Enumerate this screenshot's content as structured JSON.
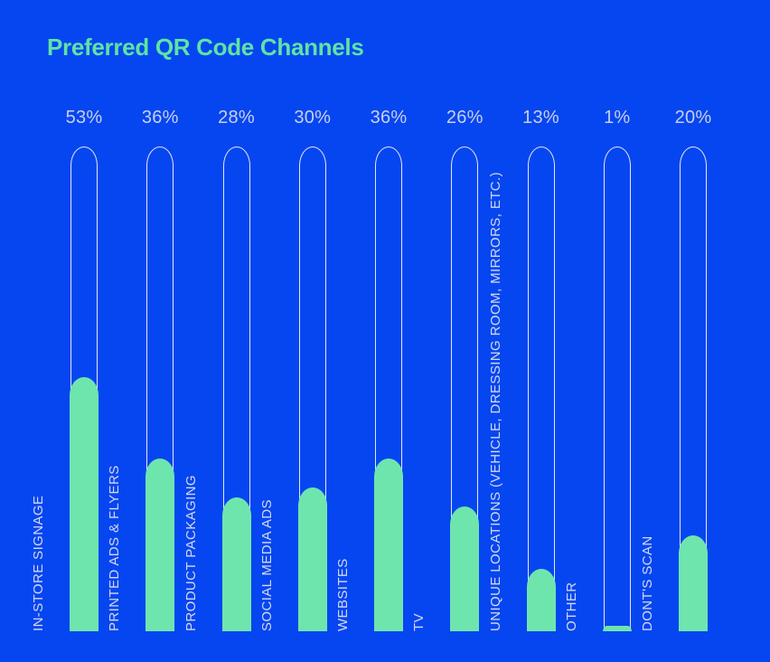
{
  "title": "Preferred QR Code Channels",
  "colors": {
    "background": "#0646F0",
    "bar_fill": "#6FE5AE",
    "title_text": "#5FE3A4",
    "value_text": "#C9CFEC",
    "category_text": "#D4D9F2",
    "tube_outline": "#E3E7F8"
  },
  "chart_data": {
    "type": "bar",
    "title": "Preferred QR Code Channels",
    "orientation": "vertical",
    "categories": [
      "IN-STORE SIGNAGE",
      "PRINTED ADS & FLYERS",
      "PRODUCT PACKAGING",
      "SOCIAL MEDIA ADS",
      "WEBSITES",
      "TV",
      "UNIQUE LOCATIONS (VEHICLE, DRESSING ROOM, MIRRORS, ETC.)",
      "OTHER",
      "DONT'S SCAN"
    ],
    "values": [
      53,
      36,
      28,
      30,
      36,
      26,
      13,
      1,
      20
    ],
    "value_labels": [
      "53%",
      "36%",
      "28%",
      "30%",
      "36%",
      "26%",
      "13%",
      "1%",
      "20%"
    ],
    "xlabel": "",
    "ylabel": "",
    "ylim": [
      0,
      100
    ],
    "grid": false,
    "legend": false
  }
}
